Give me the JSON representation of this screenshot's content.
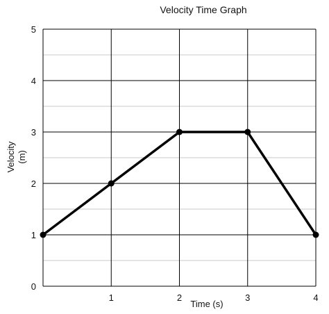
{
  "chart_data": {
    "type": "line",
    "title": "Velocity Time Graph",
    "xlabel": "Time (s)",
    "ylabel_line1": "Velocity",
    "ylabel_line2": "(m)",
    "x": [
      0,
      1,
      2,
      3,
      4
    ],
    "y": [
      1,
      2,
      3,
      3,
      1
    ],
    "xlim": [
      0,
      4
    ],
    "ylim": [
      0,
      5
    ],
    "x_ticks": [
      1,
      2,
      3,
      4
    ],
    "y_ticks": [
      0,
      1,
      2,
      3,
      4,
      5
    ],
    "grid": true,
    "minor_grid_y_step": 0.5,
    "colors": {
      "line": "#000000",
      "major_grid": "#000000",
      "minor_grid": "#c8c8c8"
    }
  }
}
